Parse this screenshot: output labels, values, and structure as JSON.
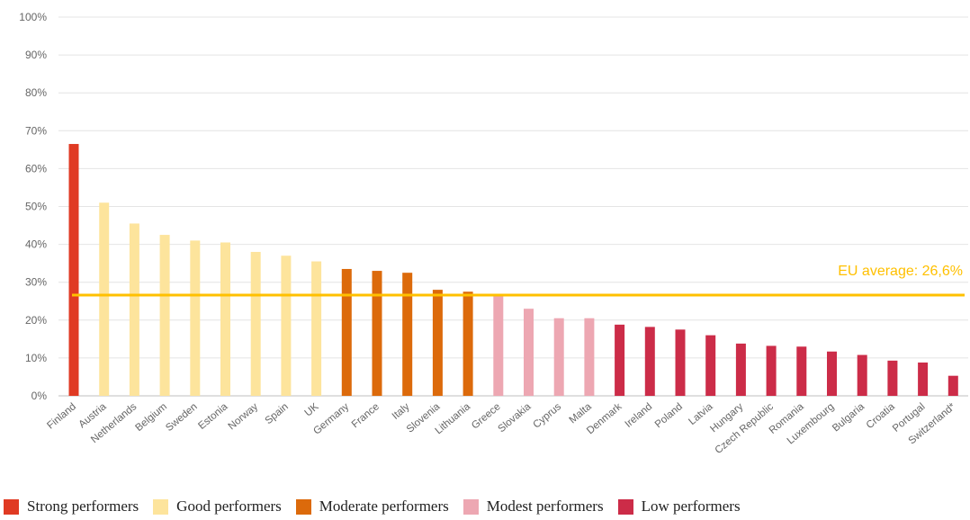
{
  "chart_data": {
    "type": "bar",
    "categories": [
      "Finland",
      "Austria",
      "Netherlands",
      "Belgium",
      "Sweden",
      "Estonia",
      "Norway",
      "Spain",
      "UK",
      "Germany",
      "France",
      "Italy",
      "Slovenia",
      "Lithuania",
      "Greece",
      "Slovakia",
      "Cyprus",
      "Malta",
      "Denmark",
      "Ireland",
      "Poland",
      "Latvia",
      "Hungary",
      "Czech Republic",
      "Romania",
      "Luxembourg",
      "Bulgaria",
      "Croatia",
      "Portugal",
      "Switzerland*"
    ],
    "values": [
      66.5,
      51,
      45.5,
      42.5,
      41,
      40.5,
      38,
      37,
      35.5,
      33.5,
      33,
      32.5,
      28,
      27.5,
      26.5,
      23,
      20.5,
      20.5,
      18.8,
      18.2,
      17.5,
      16,
      13.8,
      13.2,
      13,
      11.7,
      10.8,
      9.3,
      8.8,
      5.3
    ],
    "groups": [
      "strong",
      "good",
      "good",
      "good",
      "good",
      "good",
      "good",
      "good",
      "good",
      "moderate",
      "moderate",
      "moderate",
      "moderate",
      "moderate",
      "modest",
      "modest",
      "modest",
      "modest",
      "low",
      "low",
      "low",
      "low",
      "low",
      "low",
      "low",
      "low",
      "low",
      "low",
      "low",
      "low"
    ],
    "ylim": [
      0,
      100
    ],
    "yticks": [
      0,
      10,
      20,
      30,
      40,
      50,
      60,
      70,
      80,
      90,
      100
    ],
    "ytick_labels": [
      "0%",
      "10%",
      "20%",
      "30%",
      "40%",
      "50%",
      "60%",
      "70%",
      "80%",
      "90%",
      "100%"
    ],
    "grid": true,
    "reference_line": {
      "value": 26.6,
      "label": "EU average: 26,6%",
      "color": "#ffc000"
    },
    "legend_position": "bottom",
    "legend": [
      {
        "key": "strong",
        "label": "Strong performers",
        "color": "#e03a23"
      },
      {
        "key": "good",
        "label": "Good performers",
        "color": "#fde49c"
      },
      {
        "key": "moderate",
        "label": "Moderate performers",
        "color": "#dc6a0b"
      },
      {
        "key": "modest",
        "label": "Modest performers",
        "color": "#eda7b2"
      },
      {
        "key": "low",
        "label": "Low performers",
        "color": "#cc2c48"
      }
    ]
  }
}
